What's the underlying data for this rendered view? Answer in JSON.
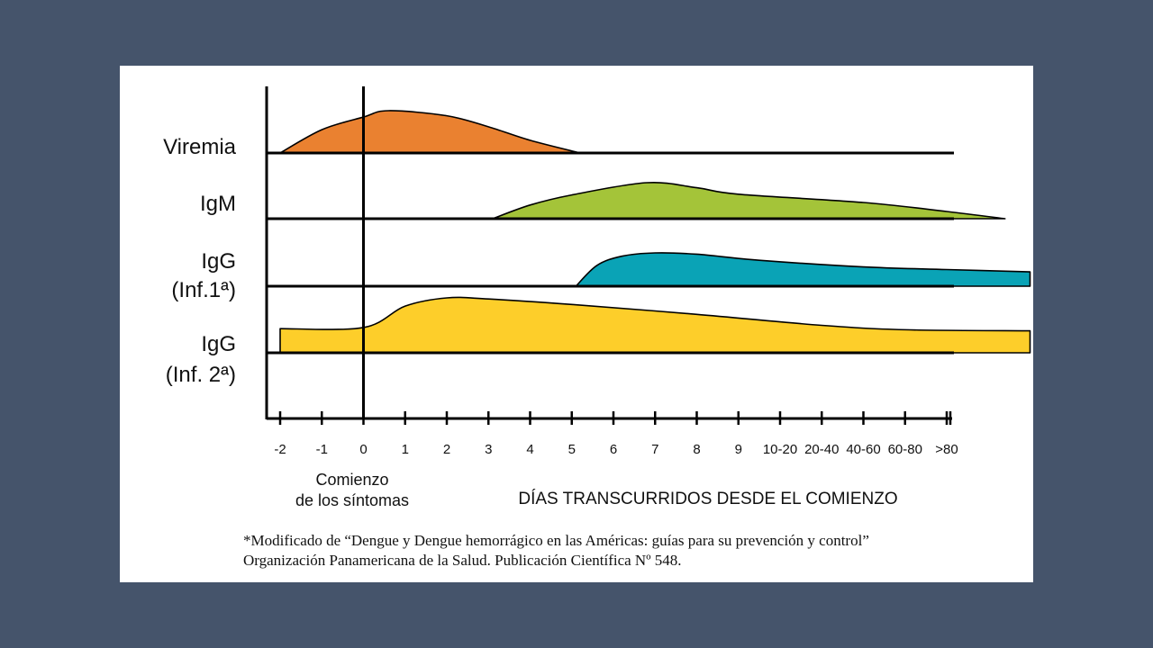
{
  "colors": {
    "background": "#45546b",
    "panel": "#ffffff",
    "axis": "#000000"
  },
  "chart_data": {
    "type": "area",
    "x_categories": [
      "-2",
      "-1",
      "0",
      "1",
      "2",
      "3",
      "4",
      "5",
      "6",
      "7",
      "8",
      "9",
      "10-20",
      "20-40",
      "40-60",
      "60-80",
      ">80"
    ],
    "x_axis_title": "DÍAS TRANSCURRIDOS DESDE EL COMIENZO",
    "onset_marker": {
      "x": "0",
      "label_line1": "Comienzo",
      "label_line2": "de los síntomas"
    },
    "series": [
      {
        "name": "Viremia",
        "label_lines": [
          "Viremia"
        ],
        "color": "#ea8130",
        "profile": [
          [
            -2,
            0
          ],
          [
            -1,
            0.55
          ],
          [
            0,
            0.85
          ],
          [
            0.6,
            1.0
          ],
          [
            2,
            0.88
          ],
          [
            3,
            0.62
          ],
          [
            4,
            0.3
          ],
          [
            5.2,
            0
          ]
        ],
        "note": "rises at onset, peaks around day 0-1, returns to baseline about day 5"
      },
      {
        "name": "IgM",
        "label_lines": [
          "IgM"
        ],
        "color": "#a4c439",
        "profile": [
          [
            3.1,
            0
          ],
          [
            4,
            0.38
          ],
          [
            5,
            0.66
          ],
          [
            6.8,
            1.0
          ],
          [
            8,
            0.86
          ],
          [
            9,
            0.68
          ],
          [
            12,
            0.45
          ],
          [
            14,
            0.2
          ],
          [
            15.4,
            0
          ]
        ],
        "note": "detectable from about day 3, peaks near day 7, declines through 60-80"
      },
      {
        "name": "IgG (Inf.1ª)",
        "label_lines": [
          "IgG",
          "(Inf.1ª)"
        ],
        "color": "#0aa3b6",
        "profile": [
          [
            5.1,
            0
          ],
          [
            5.6,
            0.62
          ],
          [
            6.2,
            0.9
          ],
          [
            7,
            1.0
          ],
          [
            8,
            0.96
          ],
          [
            9.5,
            0.78
          ],
          [
            12,
            0.58
          ],
          [
            14,
            0.5
          ],
          [
            16,
            0.43
          ]
        ],
        "note": "primary infection: appears after day 5, stays elevated long term"
      },
      {
        "name": "IgG (Inf. 2ª)",
        "label_lines": [
          "IgG",
          "(Inf. 2ª)"
        ],
        "color": "#fdce2a",
        "profile": [
          [
            -2,
            0.44
          ],
          [
            0,
            0.46
          ],
          [
            1,
            0.85
          ],
          [
            2,
            1.0
          ],
          [
            3,
            0.98
          ],
          [
            5,
            0.88
          ],
          [
            8,
            0.7
          ],
          [
            11,
            0.5
          ],
          [
            13,
            0.42
          ],
          [
            16,
            0.4
          ]
        ],
        "note": "secondary infection: baseline present before onset, rises quickly after day 0"
      }
    ],
    "ylabel": "",
    "grid": false,
    "legend": "none"
  },
  "footnote": {
    "line1": "*Modificado de “Dengue y Dengue hemorrágico en las Américas: guías para su prevención y control”",
    "line2": "Organización Panamericana de la Salud. Publicación Científica Nº 548."
  }
}
